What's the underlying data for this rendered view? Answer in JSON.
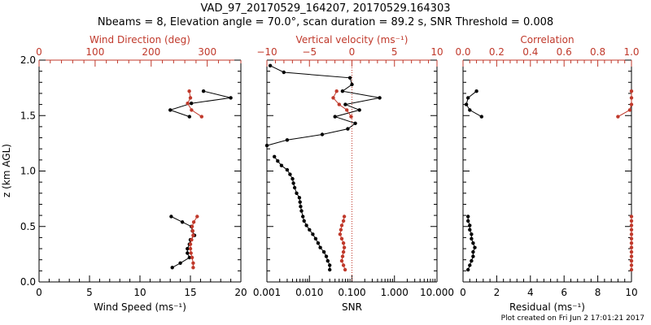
{
  "figure": {
    "title_line1": "VAD_97_20170529_164207, 20170529.164303",
    "title_line2": "Nbeams = 8, Elevation angle = 70.0°, scan duration = 89.2 s, SNR Threshold = 0.008",
    "footer": "Plot created on Fri Jun  2 17:01:21 2017",
    "ylabel": "z (km AGL)",
    "colors": {
      "primary": "#000000",
      "secondary": "#c0392b"
    }
  },
  "chart_data": [
    {
      "type": "line",
      "panel": "wind",
      "ylabel": "z (km AGL)",
      "ylim": [
        0,
        2.0
      ],
      "yticks": [
        0.0,
        0.5,
        1.0,
        1.5,
        2.0
      ],
      "yticklabels": [
        "0.0",
        "0.5",
        "1.0",
        "1.5",
        "2.0"
      ],
      "bottom_axis": {
        "label": "Wind Speed (ms⁻¹)",
        "range": [
          0,
          20
        ],
        "ticks": [
          0,
          5,
          10,
          15,
          20
        ],
        "ticklabels": [
          "0",
          "5",
          "10",
          "15",
          "20"
        ]
      },
      "top_axis": {
        "label": "Wind Direction (deg)",
        "range": [
          0,
          360
        ],
        "ticks": [
          0,
          100,
          200,
          300
        ],
        "ticklabels": [
          "0",
          "100",
          "200",
          "300"
        ]
      },
      "series": [
        {
          "axis": "bottom",
          "color": "#000000",
          "y": [
            0.13,
            0.17,
            0.22,
            0.26,
            0.3,
            0.34,
            0.38,
            0.42,
            0.46,
            0.5,
            0.54,
            0.59
          ],
          "x": [
            13.2,
            14.0,
            14.9,
            14.7,
            14.7,
            14.9,
            15.0,
            15.4,
            15.2,
            15.1,
            14.2,
            13.1
          ],
          "segments": [
            [
              0,
              11
            ]
          ]
        },
        {
          "axis": "bottom",
          "color": "#000000",
          "y": [
            1.49,
            1.55,
            1.61,
            1.66,
            1.72
          ],
          "x": [
            14.9,
            13.0,
            15.1,
            19.0,
            16.3
          ],
          "segments": [
            [
              0,
              4
            ]
          ]
        },
        {
          "axis": "top",
          "color": "#c0392b",
          "y": [
            0.13,
            0.17,
            0.22,
            0.26,
            0.3,
            0.34,
            0.38,
            0.42,
            0.46,
            0.5,
            0.54,
            0.59
          ],
          "x": [
            275,
            275,
            273,
            271,
            270,
            270,
            272,
            275,
            274,
            273,
            276,
            282
          ],
          "segments": [
            [
              0,
              11
            ]
          ]
        },
        {
          "axis": "top",
          "color": "#c0392b",
          "y": [
            1.49,
            1.55,
            1.61,
            1.66,
            1.72
          ],
          "x": [
            290,
            272,
            265,
            270,
            268
          ],
          "segments": [
            [
              0,
              4
            ]
          ]
        }
      ]
    },
    {
      "type": "line",
      "panel": "velocity",
      "ylim": [
        0,
        2.0
      ],
      "bottom_axis": {
        "label": "SNR",
        "range": [
          0.001,
          10
        ],
        "log": true,
        "ticks": [
          0.001,
          0.01,
          0.1,
          1,
          10
        ],
        "ticklabels": [
          "0.001",
          "0.010",
          "0.100",
          "1.000",
          "10.000"
        ]
      },
      "top_axis": {
        "label": "Vertical velocity (ms⁻¹)",
        "range": [
          -10,
          10
        ],
        "ticks": [
          -10,
          -5,
          0,
          5,
          10
        ],
        "ticklabels": [
          "−10",
          "−5",
          "0",
          "5",
          "10"
        ]
      },
      "series": [
        {
          "axis": "bottom",
          "color": "#000000",
          "y": [
            0.11,
            0.15,
            0.19,
            0.23,
            0.27,
            0.31,
            0.35,
            0.39,
            0.43,
            0.47,
            0.51,
            0.55,
            0.59,
            0.64,
            0.68,
            0.72,
            0.76,
            0.8,
            0.85,
            0.89,
            0.93,
            0.97,
            1.01,
            1.05,
            1.09,
            1.13,
            1.23,
            1.28,
            1.33,
            1.38,
            1.43,
            1.49,
            1.55,
            1.6,
            1.66,
            1.72,
            1.78,
            1.84,
            1.89,
            1.95
          ],
          "x": [
            0.03,
            0.03,
            0.027,
            0.025,
            0.022,
            0.018,
            0.016,
            0.014,
            0.012,
            0.01,
            0.0085,
            0.0075,
            0.007,
            0.0065,
            0.0062,
            0.006,
            0.0058,
            0.005,
            0.0045,
            0.0042,
            0.004,
            0.0035,
            0.003,
            0.0022,
            0.0018,
            0.0015,
            0.001,
            0.003,
            0.02,
            0.08,
            0.12,
            0.04,
            0.15,
            0.07,
            0.45,
            0.06,
            0.1,
            0.09,
            0.0025,
            0.0012
          ],
          "segments": [
            [
              0,
              25
            ],
            [
              26,
              39
            ]
          ]
        },
        {
          "axis": "top",
          "color": "#c0392b",
          "y": [
            0.11,
            0.15,
            0.19,
            0.23,
            0.27,
            0.31,
            0.35,
            0.39,
            0.43,
            0.47,
            0.51,
            0.55,
            0.59,
            1.49,
            1.55,
            1.6,
            1.66,
            1.72
          ],
          "x": [
            -0.8,
            -1.0,
            -1.2,
            -1.1,
            -1.0,
            -0.9,
            -1.0,
            -1.2,
            -1.4,
            -1.3,
            -1.2,
            -1.0,
            -0.9,
            -0.1,
            -0.6,
            -1.5,
            -2.2,
            -1.8
          ],
          "segments": [
            [
              0,
              12
            ],
            [
              13,
              17
            ]
          ]
        }
      ],
      "reference_line": {
        "axis": "top",
        "x": 0,
        "color": "#c0392b",
        "style": "dotted"
      }
    },
    {
      "type": "line",
      "panel": "residual",
      "ylim": [
        0,
        2.0
      ],
      "bottom_axis": {
        "label": "Residual (ms⁻¹)",
        "range": [
          0,
          10
        ],
        "ticks": [
          0,
          2,
          4,
          6,
          8,
          10
        ],
        "ticklabels": [
          "0",
          "2",
          "4",
          "6",
          "8",
          "10"
        ]
      },
      "top_axis": {
        "label": "Correlation",
        "range": [
          0,
          1.0
        ],
        "ticks": [
          0.0,
          0.2,
          0.4,
          0.6,
          0.8,
          1.0
        ],
        "ticklabels": [
          "0.0",
          "0.2",
          "0.4",
          "0.6",
          "0.8",
          "1.0"
        ]
      },
      "series": [
        {
          "axis": "bottom",
          "color": "#000000",
          "y": [
            0.11,
            0.15,
            0.19,
            0.23,
            0.27,
            0.31,
            0.35,
            0.39,
            0.43,
            0.47,
            0.51,
            0.55,
            0.59,
            1.49,
            1.55,
            1.6,
            1.66,
            1.72
          ],
          "x": [
            0.3,
            0.4,
            0.5,
            0.6,
            0.6,
            0.7,
            0.6,
            0.5,
            0.5,
            0.4,
            0.4,
            0.3,
            0.3,
            1.1,
            0.4,
            0.2,
            0.3,
            0.8
          ],
          "segments": [
            [
              0,
              12
            ],
            [
              13,
              17
            ]
          ]
        },
        {
          "axis": "top",
          "color": "#c0392b",
          "y": [
            0.11,
            0.15,
            0.19,
            0.23,
            0.27,
            0.31,
            0.35,
            0.39,
            0.43,
            0.47,
            0.51,
            0.55,
            0.59,
            1.49,
            1.55,
            1.6,
            1.66,
            1.72
          ],
          "x": [
            1.0,
            1.0,
            1.0,
            1.0,
            1.0,
            1.0,
            1.0,
            1.0,
            1.0,
            1.0,
            1.0,
            1.0,
            1.0,
            0.92,
            0.99,
            1.0,
            1.0,
            1.0
          ],
          "segments": [
            [
              0,
              12
            ],
            [
              13,
              17
            ]
          ]
        }
      ]
    }
  ]
}
